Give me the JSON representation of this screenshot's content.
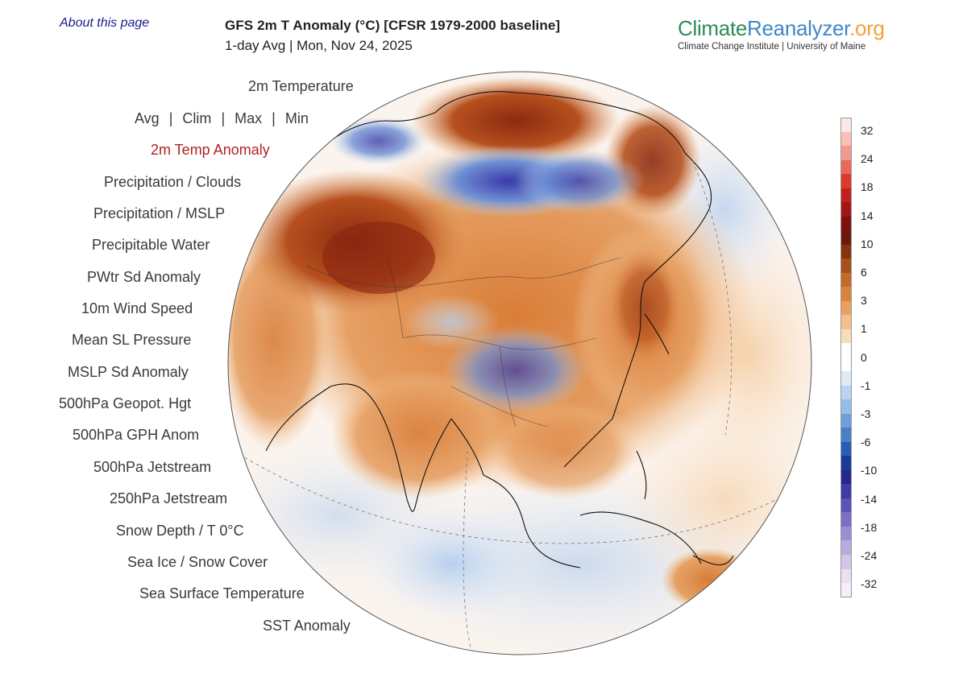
{
  "header": {
    "about_link": "About this page",
    "title": "GFS 2m T Anomaly (°C) [CFSR 1979-2000 baseline]",
    "subtitle": "1-day Avg | Mon, Nov 24, 2025"
  },
  "brand": {
    "name_part1": "Climate",
    "name_part2": "Reanalyzer",
    "name_part3": ".org",
    "tagline": "Climate Change Institute | University of Maine"
  },
  "menu": {
    "item_2m_temperature": "2m Temperature",
    "stat_avg": "Avg",
    "stat_clim": "Clim",
    "stat_max": "Max",
    "stat_min": "Min",
    "separator": "|",
    "item_2m_temp_anomaly": "2m Temp Anomaly",
    "item_precip_clouds": "Precipitation / Clouds",
    "item_precip_mslp": "Precipitation / MSLP",
    "item_precip_water": "Precipitable Water",
    "item_pwtr_sd": "PWtr Sd Anomaly",
    "item_wind_speed": "10m Wind Speed",
    "item_mslp": "Mean SL Pressure",
    "item_mslp_sd": "MSLP Sd Anomaly",
    "item_500_geopot": "500hPa Geopot. Hgt",
    "item_500_gph_anom": "500hPa GPH Anom",
    "item_500_jet": "500hPa Jetstream",
    "item_250_jet": "250hPa Jetstream",
    "item_snow_depth": "Snow Depth / T 0°C",
    "item_sea_ice": "Sea Ice / Snow Cover",
    "item_sst": "Sea Surface Temperature",
    "item_sst_anom": "SST Anomaly"
  },
  "legend": {
    "labels": [
      "32",
      "24",
      "18",
      "14",
      "10",
      "6",
      "3",
      "1",
      "0",
      "-1",
      "-3",
      "-6",
      "-10",
      "-14",
      "-18",
      "-24",
      "-32"
    ],
    "colors": [
      "#fbe9e7",
      "#f6c1b4",
      "#ef9a8a",
      "#e86a5c",
      "#dd3a2e",
      "#c41f1f",
      "#a31515",
      "#7e1010",
      "#6b1a0a",
      "#8a3210",
      "#a8501a",
      "#c46a2a",
      "#d9843a",
      "#e8a160",
      "#f2c08e",
      "#f8dcbe",
      "#ffffff",
      "#ffffff",
      "#dfeaf7",
      "#bcd4ef",
      "#97bde6",
      "#6f9fd8",
      "#4a7fc8",
      "#2a5db4",
      "#1a3a98",
      "#23288a",
      "#3f3aa8",
      "#5a53b8",
      "#7b6fc6",
      "#9a8ed4",
      "#b8abe0",
      "#d2c7ea",
      "#e9e0f2",
      "#f6eef8"
    ]
  }
}
